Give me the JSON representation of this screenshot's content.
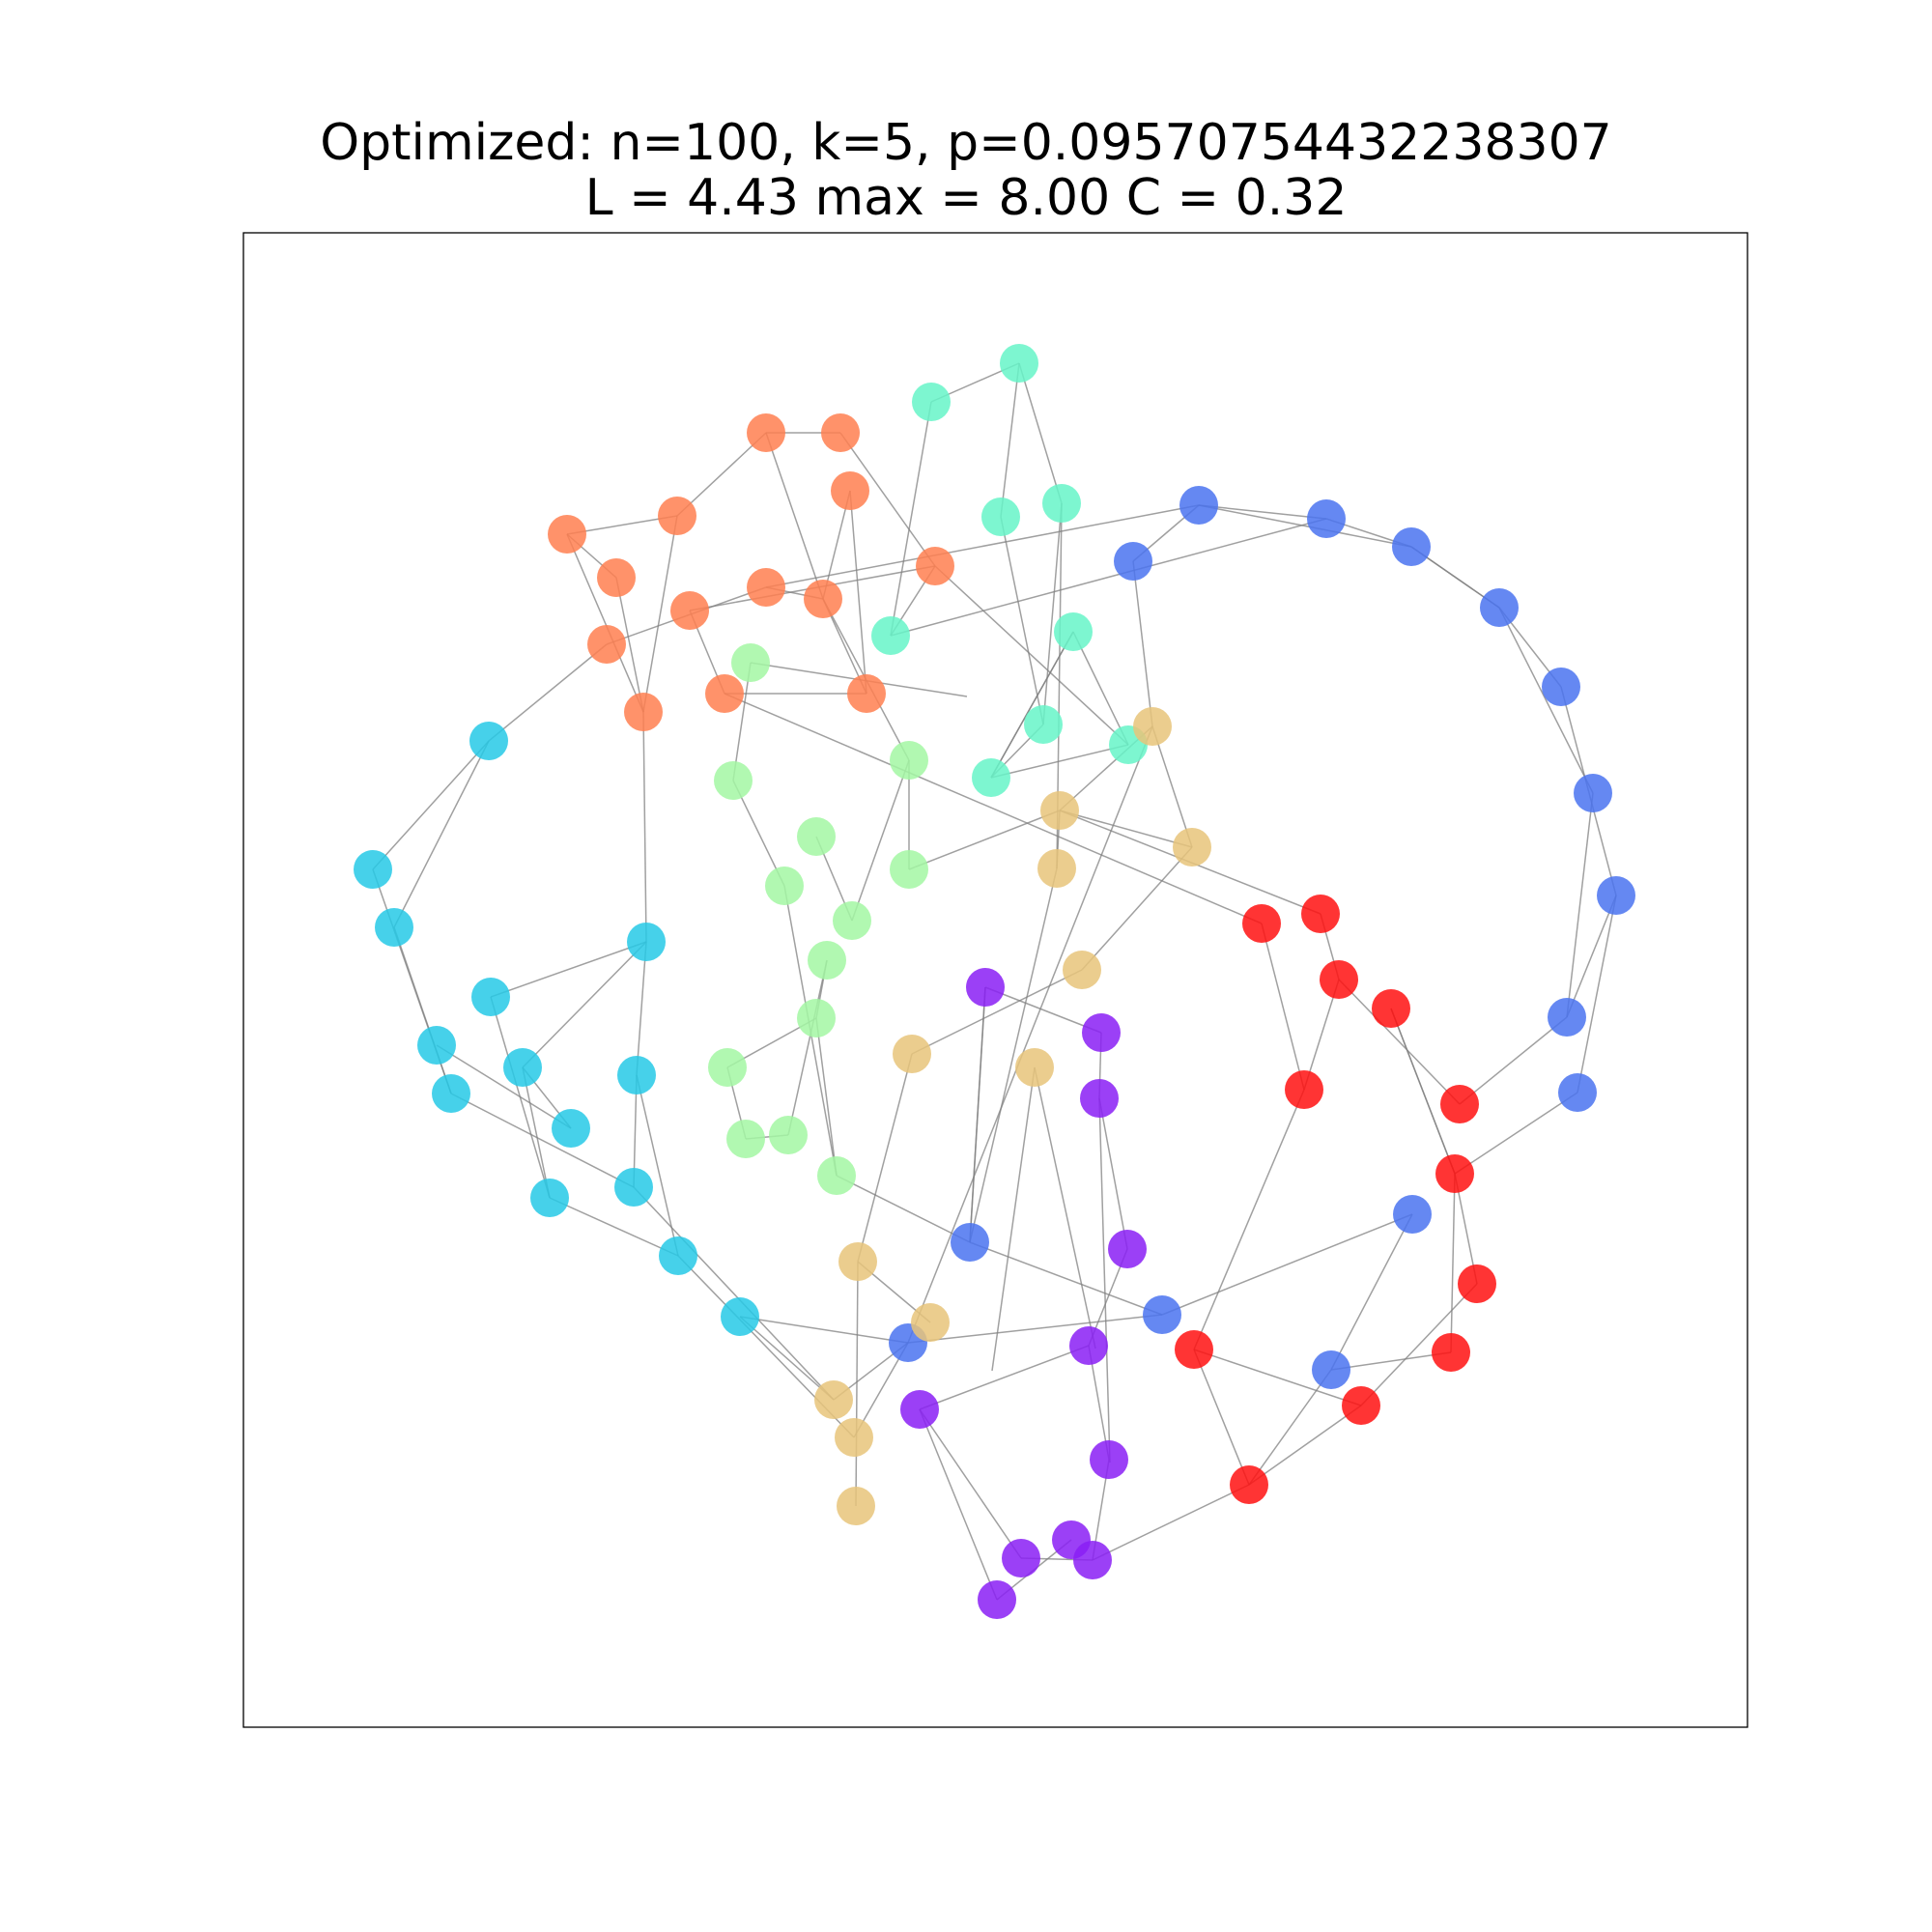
{
  "title": {
    "line1": "Optimized: n=100, k=5, p=0.09570754432238307",
    "line2": "L = 4.43 max = 8.00 C = 0.32"
  },
  "colors": {
    "edge": "#808080",
    "frame": "#000000",
    "groups": {
      "orange": "#ff7f50",
      "teal": "#66f5c8",
      "blue": "#4a73f0",
      "cyan": "#26c9e6",
      "lightgreen": "#a3f7a3",
      "tan": "#e8c47a",
      "purple": "#8a1ff5",
      "red": "#ff1010"
    }
  }
}
